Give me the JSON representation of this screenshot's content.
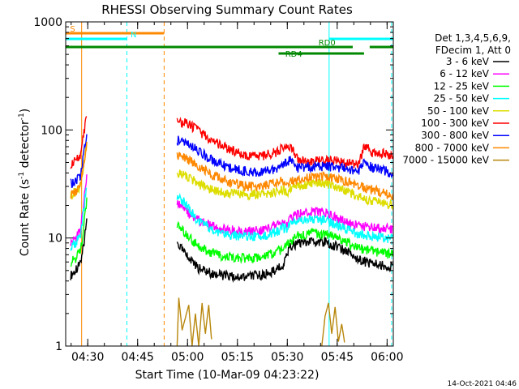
{
  "chart_data": {
    "type": "line",
    "title": "RHESSI Observing Summary Count Rates",
    "xlabel": "Start Time (10-Mar-09 04:23:22)",
    "ylabel_main": "Count Rate (s",
    "ylabel_sup1": "-1",
    "ylabel_mid": " detector",
    "ylabel_sup2": "-1",
    "ylabel_end": ")",
    "yscale": "log",
    "ylim": [
      1,
      1000
    ],
    "xlim_minutes": [
      0,
      98.5
    ],
    "x_ticks": [
      {
        "label": "04:30",
        "min": 6.63
      },
      {
        "label": "04:45",
        "min": 21.63
      },
      {
        "label": "05:00",
        "min": 36.63
      },
      {
        "label": "05:15",
        "min": 51.63
      },
      {
        "label": "05:30",
        "min": 66.63
      },
      {
        "label": "05:45",
        "min": 81.63
      },
      {
        "label": "06:00",
        "min": 96.63
      }
    ],
    "y_ticks": [
      {
        "label": "1",
        "value": 1
      },
      {
        "label": "10",
        "value": 10
      },
      {
        "label": "100",
        "value": 100
      },
      {
        "label": "1000",
        "value": 1000
      }
    ],
    "legend": {
      "header1": "Det 1,3,4,5,6,9,",
      "header2": "FDecim 1, Att 0",
      "placement": "right"
    },
    "series": [
      {
        "name": "3 - 6 keV",
        "color": "#000000",
        "data": [
          [
            1.5,
            4.5
          ],
          [
            3,
            5
          ],
          [
            4.5,
            6
          ],
          [
            5.5,
            9
          ],
          [
            6.5,
            16
          ],
          [
            33.5,
            9
          ],
          [
            36,
            7
          ],
          [
            38,
            6
          ],
          [
            40,
            5.2
          ],
          [
            45,
            4.6
          ],
          [
            50,
            4.4
          ],
          [
            55,
            4.4
          ],
          [
            60,
            4.6
          ],
          [
            63,
            5
          ],
          [
            65.5,
            5.8
          ],
          [
            66.5,
            7
          ],
          [
            67.5,
            8.3
          ],
          [
            70,
            8.8
          ],
          [
            74,
            9.3
          ],
          [
            78,
            9.2
          ],
          [
            82,
            8.2
          ],
          [
            86,
            7
          ],
          [
            88,
            6.3
          ],
          [
            92,
            5.8
          ],
          [
            96,
            5.6
          ],
          [
            98.5,
            5.4
          ]
        ]
      },
      {
        "name": "6 - 12 keV",
        "color": "#ff00ff",
        "data": [
          [
            1.5,
            9
          ],
          [
            3,
            10
          ],
          [
            4.5,
            12
          ],
          [
            5.5,
            22
          ],
          [
            6.5,
            40
          ],
          [
            33.5,
            21
          ],
          [
            36,
            18
          ],
          [
            38,
            16
          ],
          [
            40,
            14.5
          ],
          [
            45,
            12.5
          ],
          [
            50,
            11.8
          ],
          [
            55,
            11.6
          ],
          [
            60,
            12
          ],
          [
            63,
            13
          ],
          [
            65.5,
            14
          ],
          [
            66.5,
            13
          ],
          [
            67.5,
            15
          ],
          [
            70,
            16.5
          ],
          [
            74,
            17.5
          ],
          [
            78,
            17
          ],
          [
            82,
            15
          ],
          [
            86,
            13.5
          ],
          [
            88,
            13
          ],
          [
            92,
            12.5
          ],
          [
            96,
            12.3
          ],
          [
            98.5,
            12
          ]
        ]
      },
      {
        "name": "12 - 25 keV",
        "color": "#00ff00",
        "data": [
          [
            1.5,
            6
          ],
          [
            3,
            6.5
          ],
          [
            4.5,
            7.5
          ],
          [
            5.5,
            13
          ],
          [
            6.5,
            24
          ],
          [
            33.5,
            13
          ],
          [
            36,
            11
          ],
          [
            38,
            9.5
          ],
          [
            40,
            8.3
          ],
          [
            45,
            7
          ],
          [
            50,
            6.6
          ],
          [
            55,
            6.5
          ],
          [
            60,
            6.8
          ],
          [
            63,
            7.3
          ],
          [
            65.5,
            8
          ],
          [
            66.5,
            8.5
          ],
          [
            67.5,
            9.5
          ],
          [
            70,
            10.5
          ],
          [
            74,
            11
          ],
          [
            78,
            11
          ],
          [
            82,
            10
          ],
          [
            86,
            8.6
          ],
          [
            88,
            8
          ],
          [
            92,
            7.6
          ],
          [
            96,
            7.2
          ],
          [
            98.5,
            7
          ]
        ]
      },
      {
        "name": "25 - 50 keV",
        "color": "#00ffff",
        "data": [
          [
            1.5,
            8
          ],
          [
            3,
            9
          ],
          [
            4.5,
            11
          ],
          [
            5.5,
            19
          ],
          [
            6.5,
            34
          ],
          [
            33.5,
            24
          ],
          [
            36,
            21
          ],
          [
            38,
            17
          ],
          [
            40,
            14
          ],
          [
            45,
            11.5
          ],
          [
            50,
            10.6
          ],
          [
            55,
            10.3
          ],
          [
            60,
            10.6
          ],
          [
            63,
            11.2
          ],
          [
            65.5,
            12.5
          ],
          [
            66.5,
            12
          ],
          [
            67.5,
            13.5
          ],
          [
            70,
            14.5
          ],
          [
            74,
            15
          ],
          [
            78,
            14.5
          ],
          [
            82,
            13
          ],
          [
            86,
            11.5
          ],
          [
            88,
            10.8
          ],
          [
            92,
            10.4
          ],
          [
            96,
            10
          ],
          [
            98.5,
            9.8
          ]
        ]
      },
      {
        "name": "50 - 100 keV",
        "color": "#dddd00",
        "data": [
          [
            1.5,
            25
          ],
          [
            3,
            27
          ],
          [
            4.5,
            30
          ],
          [
            5.5,
            50
          ],
          [
            6.5,
            80
          ],
          [
            33.5,
            40
          ],
          [
            36,
            38
          ],
          [
            38,
            35
          ],
          [
            40,
            31
          ],
          [
            45,
            27
          ],
          [
            50,
            25.5
          ],
          [
            55,
            25
          ],
          [
            60,
            25.5
          ],
          [
            63,
            26.5
          ],
          [
            65.5,
            28
          ],
          [
            66.5,
            26
          ],
          [
            67.5,
            29
          ],
          [
            70,
            30
          ],
          [
            74,
            32
          ],
          [
            78,
            32
          ],
          [
            82,
            29
          ],
          [
            86,
            26
          ],
          [
            88,
            24
          ],
          [
            92,
            22
          ],
          [
            96,
            21
          ],
          [
            98.5,
            20
          ]
        ]
      },
      {
        "name": "100 - 300 keV",
        "color": "#ff0000",
        "data": [
          [
            1.5,
            48
          ],
          [
            3,
            52
          ],
          [
            4.5,
            58
          ],
          [
            5.5,
            95
          ],
          [
            6.5,
            140
          ],
          [
            33.5,
            120
          ],
          [
            36,
            115
          ],
          [
            38,
            108
          ],
          [
            40,
            96
          ],
          [
            45,
            76
          ],
          [
            50,
            64
          ],
          [
            55,
            56
          ],
          [
            60,
            58
          ],
          [
            63,
            62
          ],
          [
            65.5,
            68
          ],
          [
            66.5,
            68
          ],
          [
            67.5,
            72
          ],
          [
            70,
            52
          ],
          [
            74,
            52
          ],
          [
            78,
            52
          ],
          [
            82,
            51
          ],
          [
            86,
            49
          ],
          [
            88,
            48
          ],
          [
            90,
            72
          ],
          [
            92,
            62
          ],
          [
            96,
            60
          ],
          [
            98.5,
            57
          ]
        ]
      },
      {
        "name": "300 - 800 keV",
        "color": "#0000ff",
        "data": [
          [
            1.5,
            32
          ],
          [
            3,
            34
          ],
          [
            4.5,
            38
          ],
          [
            5.5,
            62
          ],
          [
            6.5,
            95
          ],
          [
            33.5,
            80
          ],
          [
            36,
            76
          ],
          [
            38,
            71
          ],
          [
            40,
            63
          ],
          [
            45,
            51
          ],
          [
            50,
            44
          ],
          [
            55,
            41
          ],
          [
            60,
            41
          ],
          [
            63,
            43
          ],
          [
            65.5,
            47
          ],
          [
            66.5,
            50
          ],
          [
            67.5,
            52
          ],
          [
            70,
            44
          ],
          [
            74,
            46
          ],
          [
            78,
            46
          ],
          [
            82,
            45
          ],
          [
            86,
            43
          ],
          [
            88,
            42
          ],
          [
            90,
            51
          ],
          [
            92,
            45
          ],
          [
            96,
            42
          ],
          [
            98.5,
            39
          ]
        ]
      },
      {
        "name": "800 - 7000 keV",
        "color": "#ff8800",
        "data": [
          [
            1.5,
            25
          ],
          [
            3,
            27
          ],
          [
            4.5,
            31
          ],
          [
            5.5,
            50
          ],
          [
            6.5,
            75
          ],
          [
            33.5,
            58
          ],
          [
            36,
            55
          ],
          [
            38,
            51
          ],
          [
            40,
            45
          ],
          [
            45,
            37
          ],
          [
            50,
            32
          ],
          [
            55,
            30
          ],
          [
            60,
            30.5
          ],
          [
            63,
            32
          ],
          [
            65.5,
            34
          ],
          [
            66.5,
            33
          ],
          [
            67.5,
            33
          ],
          [
            70,
            35
          ],
          [
            74,
            37
          ],
          [
            78,
            37
          ],
          [
            82,
            35
          ],
          [
            86,
            32
          ],
          [
            88,
            30
          ],
          [
            92,
            28
          ],
          [
            96,
            26
          ],
          [
            98.5,
            24
          ]
        ]
      },
      {
        "name": "7000 - 15000 keV",
        "color": "#b8860b",
        "data": [
          [
            33.5,
            1
          ],
          [
            34,
            2.8
          ],
          [
            34.5,
            2
          ],
          [
            35,
            1.4
          ],
          [
            37,
            2.4
          ],
          [
            38,
            1
          ],
          [
            39,
            2
          ],
          [
            40,
            1
          ],
          [
            41,
            2.5
          ],
          [
            42,
            1.3
          ],
          [
            43,
            2.4
          ],
          [
            44,
            1
          ],
          [
            77,
            1
          ],
          [
            78,
            1.9
          ],
          [
            79,
            2.5
          ],
          [
            80,
            1.3
          ],
          [
            81,
            2.3
          ],
          [
            82,
            1.1
          ],
          [
            83,
            1.6
          ],
          [
            84,
            1
          ]
        ]
      }
    ],
    "state_bars": [
      {
        "label": "S",
        "color": "#ff8800",
        "row": 1,
        "start": 0,
        "end": 29.6
      },
      {
        "label": "N",
        "color": "#00ffff",
        "row": 2,
        "start": 0,
        "end": 18.4
      },
      {
        "label": "N",
        "color": "#00ffff",
        "row": 2,
        "start": 79.2,
        "end": 98.5
      },
      {
        "label": "RD0",
        "color": "#008800",
        "row": 3,
        "start": 0,
        "end": 86.3
      },
      {
        "label": "RD0",
        "color": "#008800",
        "row": 3,
        "start": 91.4,
        "end": 98.5
      },
      {
        "label": "RD4",
        "color": "#008800",
        "row": 4,
        "start": 64,
        "end": 89.7
      }
    ],
    "state_labels": [
      {
        "text": "S",
        "color": "#ff8800",
        "min": 1.3,
        "row": 1
      },
      {
        "text": "N",
        "color": "#00ffff",
        "min": 19.5,
        "row": 2
      },
      {
        "text": "RD0",
        "color": "#008800",
        "min": 76,
        "row": 3
      },
      {
        "text": "RD4",
        "color": "#008800",
        "min": 66,
        "row": 4
      }
    ],
    "vlines": [
      {
        "min": 4.8,
        "color": "#ff8800",
        "style": "solid"
      },
      {
        "min": 18.4,
        "color": "#00ffff",
        "style": "dashed"
      },
      {
        "min": 29.6,
        "color": "#ff8800",
        "style": "dashed"
      },
      {
        "min": 79.2,
        "color": "#00ffff",
        "style": "solid"
      },
      {
        "min": 98.0,
        "color": "#00ffff",
        "style": "dashed"
      }
    ],
    "grid": false
  },
  "footer": {
    "date": "14-Oct-2021 04:46"
  }
}
